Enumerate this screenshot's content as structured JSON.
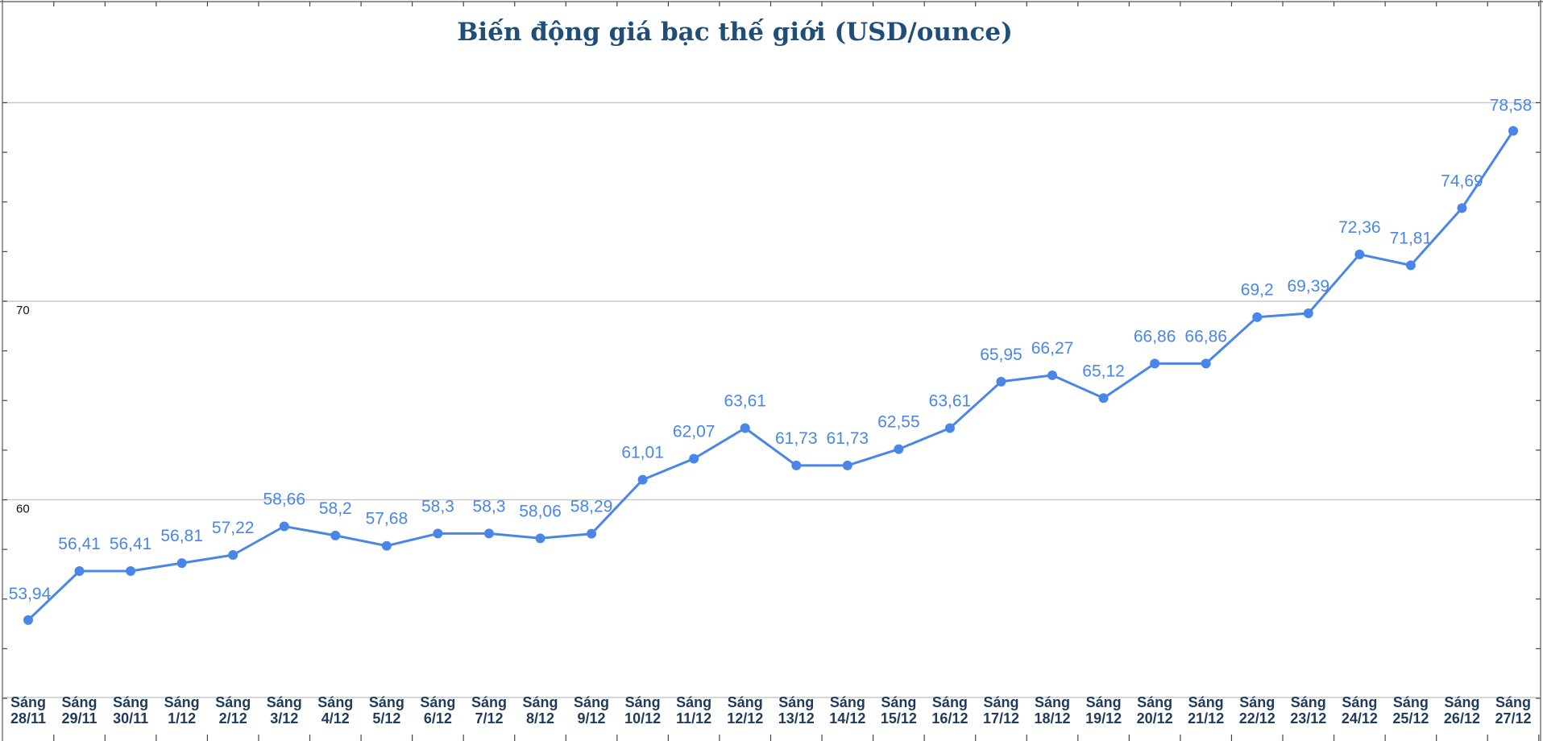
{
  "chart_data": {
    "type": "line",
    "title": "Biến động giá bạc thế giới (USD/ounce)",
    "xlabel": "",
    "ylabel": "",
    "ylim": [
      50,
      80
    ],
    "yticks": [
      "60",
      "70"
    ],
    "grid": true,
    "series_color": "#4a86e8",
    "categories": [
      [
        "Sáng",
        "28/11"
      ],
      [
        "Sáng",
        "29/11"
      ],
      [
        "Sáng",
        "30/11"
      ],
      [
        "Sáng",
        "1/12"
      ],
      [
        "Sáng",
        "2/12"
      ],
      [
        "Sáng",
        "3/12"
      ],
      [
        "Sáng",
        "4/12"
      ],
      [
        "Sáng",
        "5/12"
      ],
      [
        "Sáng",
        "6/12"
      ],
      [
        "Sáng",
        "7/12"
      ],
      [
        "Sáng",
        "8/12"
      ],
      [
        "Sáng",
        "9/12"
      ],
      [
        "Sáng",
        "10/12"
      ],
      [
        "Sáng",
        "11/12"
      ],
      [
        "Sáng",
        "12/12"
      ],
      [
        "Sáng",
        "13/12"
      ],
      [
        "Sáng",
        "14/12"
      ],
      [
        "Sáng",
        "15/12"
      ],
      [
        "Sáng",
        "16/12"
      ],
      [
        "Sáng",
        "17/12"
      ],
      [
        "Sáng",
        "18/12"
      ],
      [
        "Sáng",
        "19/12"
      ],
      [
        "Sáng",
        "20/12"
      ],
      [
        "Sáng",
        "21/12"
      ],
      [
        "Sáng",
        "22/12"
      ],
      [
        "Sáng",
        "23/12"
      ],
      [
        "Sáng",
        "24/12"
      ],
      [
        "Sáng",
        "25/12"
      ],
      [
        "Sáng",
        "26/12"
      ],
      [
        "Sáng",
        "27/12"
      ]
    ],
    "values": [
      53.94,
      56.41,
      56.41,
      56.81,
      57.22,
      58.66,
      58.2,
      57.68,
      58.3,
      58.3,
      58.06,
      58.29,
      61.01,
      62.07,
      63.61,
      61.73,
      61.73,
      62.55,
      63.61,
      65.95,
      66.27,
      65.12,
      66.86,
      66.86,
      69.2,
      69.39,
      72.36,
      71.81,
      74.69,
      78.58
    ],
    "value_labels": [
      "53,94",
      "56,41",
      "56,41",
      "56,81",
      "57,22",
      "58,66",
      "58,2",
      "57,68",
      "58,3",
      "58,3",
      "58,06",
      "58,29",
      "61,01",
      "62,07",
      "63,61",
      "61,73",
      "61,73",
      "62,55",
      "63,61",
      "65,95",
      "66,27",
      "65,12",
      "66,86",
      "66,86",
      "69,2",
      "69,39",
      "72,36",
      "71,81",
      "74,69",
      "78,58"
    ]
  }
}
